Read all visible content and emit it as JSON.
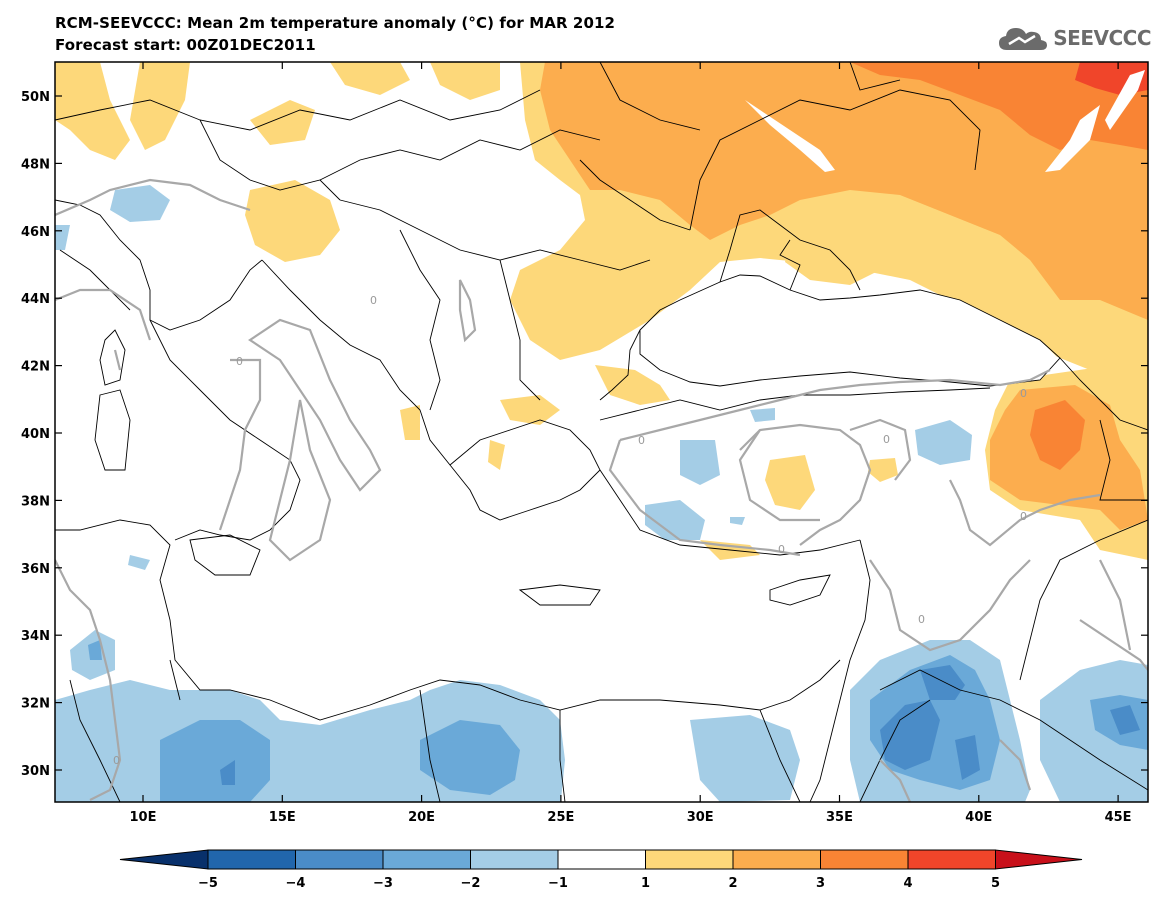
{
  "title_line1": "RCM-SEEVCCC: Mean 2m temperature anomaly (°C) for MAR 2012",
  "title_line2": "Forecast start: 00Z01DEC2011",
  "logo_text": "SEEVCCC",
  "map": {
    "lon_labels": [
      "10E",
      "15E",
      "20E",
      "25E",
      "30E",
      "35E",
      "40E",
      "45E"
    ],
    "lat_labels": [
      "50N",
      "48N",
      "46N",
      "44N",
      "42N",
      "40N",
      "38N",
      "36N",
      "34N",
      "32N",
      "30N"
    ],
    "contour_label": "0"
  },
  "colorbar": {
    "labels": [
      "−5",
      "−4",
      "−3",
      "−2",
      "−1",
      "1",
      "2",
      "3",
      "4",
      "5"
    ],
    "colors": [
      "#08306b",
      "#2166ac",
      "#4a8cc8",
      "#6aa9d8",
      "#a4cde6",
      "#ffffff",
      "#fdd87a",
      "#fcad4e",
      "#f98434",
      "#f0452a",
      "#c8101a"
    ]
  }
}
